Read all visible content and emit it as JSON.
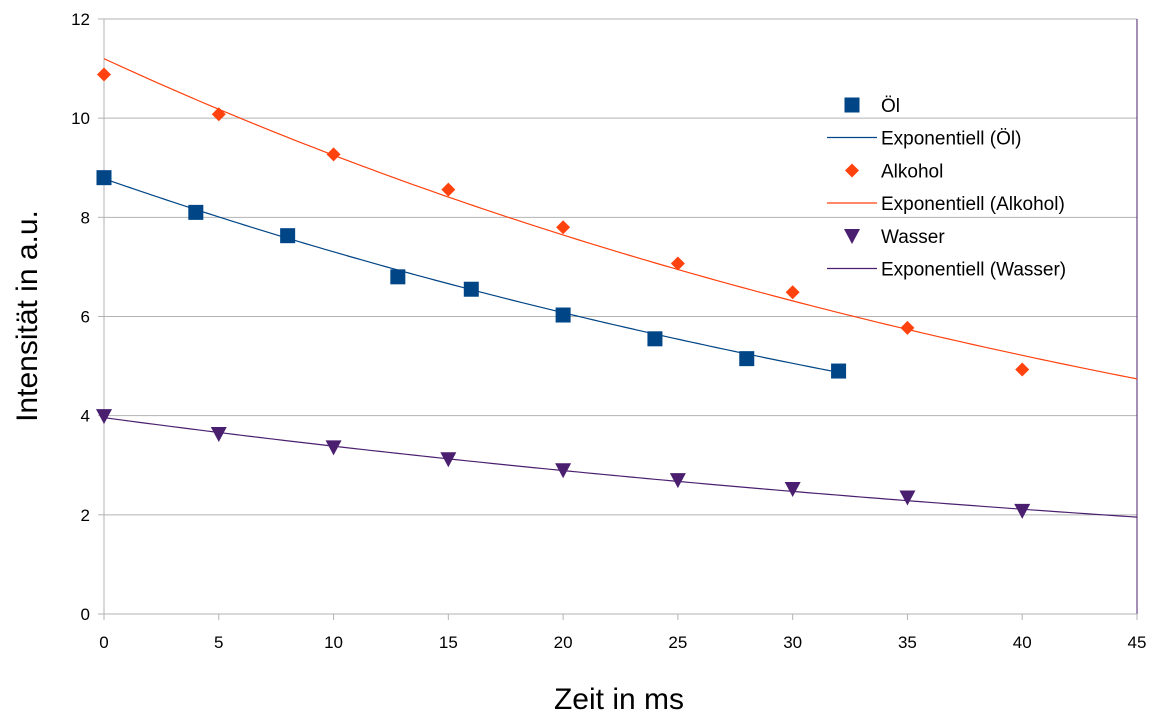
{
  "chart_data": {
    "type": "scatter",
    "title": "",
    "xlabel": "Zeit in ms",
    "ylabel": "Intensität in a.u.",
    "xlim": [
      0,
      45
    ],
    "ylim": [
      0,
      12
    ],
    "xticks": [
      0,
      5,
      10,
      15,
      20,
      25,
      30,
      35,
      40,
      45
    ],
    "yticks": [
      0,
      2,
      4,
      6,
      8,
      10,
      12
    ],
    "grid": "horizontal",
    "legend_position": "right",
    "series": [
      {
        "name": "Öl",
        "marker": "square",
        "color": "#004586",
        "x": [
          0,
          4,
          8,
          12.8,
          16,
          20,
          24,
          28,
          32
        ],
        "y": [
          8.8,
          8.1,
          7.63,
          6.8,
          6.55,
          6.03,
          5.55,
          5.15,
          4.9
        ],
        "trend": {
          "name": "Exponentiell (Öl)",
          "type": "exponential",
          "a": 8.78,
          "b": -0.0184,
          "x_range": [
            0,
            32
          ]
        }
      },
      {
        "name": "Alkohol",
        "marker": "diamond",
        "color": "#ff420e",
        "x": [
          0,
          5,
          10,
          15,
          20,
          25,
          30,
          35,
          40
        ],
        "y": [
          10.88,
          10.08,
          9.27,
          8.56,
          7.8,
          7.07,
          6.49,
          5.77,
          4.93
        ],
        "trend": {
          "name": "Exponentiell (Alkohol)",
          "type": "exponential",
          "a": 11.2,
          "b": -0.0191,
          "x_range": [
            0,
            45
          ]
        }
      },
      {
        "name": "Wasser",
        "marker": "triangle-down",
        "color": "#4b1f6f",
        "x": [
          0,
          5,
          10,
          15,
          20,
          25,
          30,
          35,
          40
        ],
        "y": [
          3.99,
          3.63,
          3.36,
          3.12,
          2.9,
          2.7,
          2.52,
          2.35,
          2.08
        ],
        "trend": {
          "name": "Exponentiell (Wasser)",
          "type": "exponential",
          "a": 3.96,
          "b": -0.0157,
          "x_range": [
            0,
            45
          ]
        }
      }
    ]
  }
}
